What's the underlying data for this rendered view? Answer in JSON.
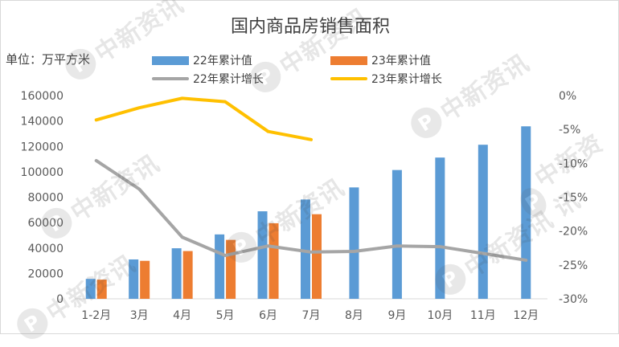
{
  "title": "国内商品房销售面积",
  "unit_label": "单位：万平方米",
  "watermark": "中新资讯",
  "watermark_logo": "P",
  "chart_data": {
    "type": "bar",
    "title": "国内商品房销售面积",
    "ylabel": "单位：万平方米",
    "categories": [
      "1-2月",
      "3月",
      "4月",
      "5月",
      "6月",
      "7月",
      "8月",
      "9月",
      "10月",
      "11月",
      "12月"
    ],
    "ylim": [
      0,
      160000
    ],
    "y_ticks": [
      0,
      20000,
      40000,
      60000,
      80000,
      100000,
      120000,
      140000,
      160000
    ],
    "y2lim": [
      -30,
      0
    ],
    "y2_ticks": [
      0,
      -5,
      -10,
      -15,
      -20,
      -25,
      -30
    ],
    "y2_tick_labels": [
      "0%",
      "-5%",
      "-10%",
      "-15%",
      "-20%",
      "-25%",
      "-30%"
    ],
    "series": [
      {
        "name": "22年累计值",
        "kind": "bar",
        "axis": "left",
        "color": "#5b9bd5",
        "values": [
          15700,
          31000,
          39800,
          50700,
          68900,
          78200,
          87700,
          101400,
          111200,
          121300,
          135800
        ]
      },
      {
        "name": "23年累计值",
        "kind": "bar",
        "axis": "left",
        "color": "#ed7d31",
        "values": [
          15100,
          29900,
          37600,
          46400,
          59500,
          66600,
          null,
          null,
          null,
          null,
          null
        ]
      },
      {
        "name": "22年累计增长",
        "kind": "line",
        "axis": "right",
        "color": "#a5a5a5",
        "values": [
          -9.6,
          -13.8,
          -20.9,
          -23.6,
          -22.2,
          -23.1,
          -23.0,
          -22.2,
          -22.3,
          -23.3,
          -24.3
        ]
      },
      {
        "name": "23年累计增长",
        "kind": "line",
        "axis": "right",
        "color": "#ffc000",
        "values": [
          -3.6,
          -1.8,
          -0.4,
          -0.9,
          -5.3,
          -6.5,
          null,
          null,
          null,
          null,
          null
        ]
      }
    ],
    "grid": false,
    "legend": "top"
  }
}
